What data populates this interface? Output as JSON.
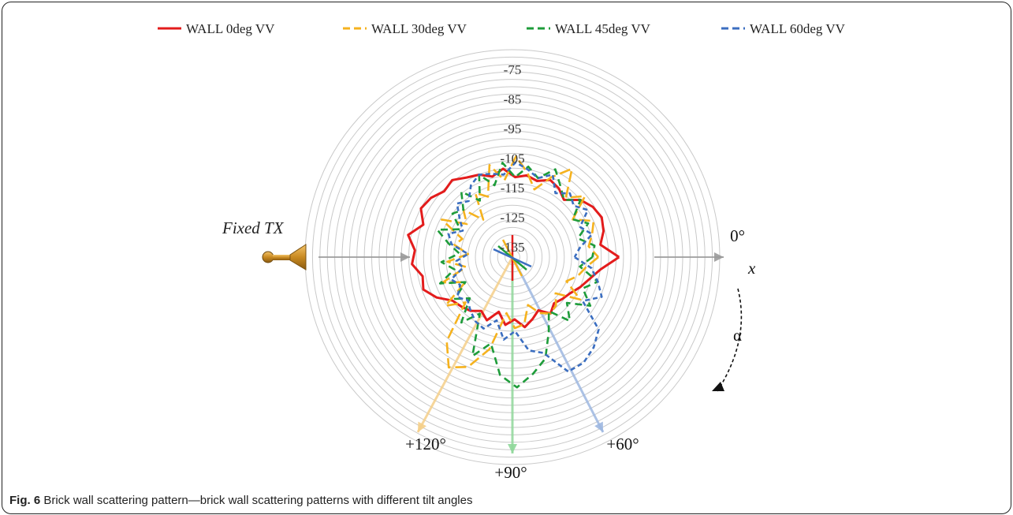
{
  "caption": {
    "label": "Fig. 6",
    "text": "Brick wall scattering pattern—brick wall scattering patterns with different tilt angles"
  },
  "annotations": {
    "transmitter": "Fixed TX",
    "x_axis": "x",
    "rotation": "α"
  },
  "colors": {
    "wall_0": "#e31c1c",
    "wall_30": "#f5b21e",
    "wall_45": "#1e9c3a",
    "wall_60": "#3b6ec0",
    "ring": "#c9c9c9",
    "arrow_grey": "#9a9a9a"
  },
  "chart_data": {
    "type": "polar",
    "radial_ticks": [
      "-75",
      "-85",
      "-95",
      "-105",
      "-115",
      "-125",
      "-135"
    ],
    "radial_range": [
      -140,
      -70
    ],
    "angle_labels": [
      {
        "angle": 0,
        "label": "0°"
      },
      {
        "angle": 60,
        "label": "+60°"
      },
      {
        "angle": 90,
        "label": "+90°"
      },
      {
        "angle": 120,
        "label": "+120°"
      }
    ],
    "angle_unit": "deg",
    "angle_direction": "clockwise from +x",
    "series": [
      {
        "name": "WALL 0deg VV",
        "key": "wall_0",
        "dash": "",
        "angles": [
          0,
          8,
          16,
          24,
          32,
          40,
          48,
          56,
          64,
          72,
          80,
          88,
          96,
          104,
          112,
          120,
          128,
          136,
          144,
          152,
          160,
          168,
          176,
          184,
          192,
          200,
          208,
          216,
          224,
          232,
          240,
          248,
          256,
          264,
          272,
          280,
          288,
          296,
          304,
          312,
          320,
          328,
          336,
          344,
          352
        ],
        "values": [
          -104,
          -110,
          -113,
          -115,
          -117,
          -118,
          -119,
          -117,
          -120,
          -118,
          -116,
          -119,
          -117,
          -121,
          -117,
          -119,
          -117,
          -116,
          -115,
          -111,
          -108,
          -109,
          -106,
          -107,
          -104,
          -108,
          -105,
          -106,
          -108,
          -107,
          -109,
          -110,
          -112,
          -110,
          -113,
          -112,
          -113,
          -111,
          -112,
          -114,
          -110,
          -108,
          -107,
          -108,
          -110
        ]
      },
      {
        "name": "WALL 30deg VV",
        "key": "wall_30",
        "dash": "14 6",
        "angles": [
          0,
          8,
          16,
          24,
          32,
          40,
          48,
          56,
          64,
          72,
          80,
          88,
          96,
          104,
          112,
          120,
          128,
          136,
          144,
          152,
          160,
          168,
          176,
          184,
          192,
          200,
          208,
          216,
          224,
          232,
          240,
          248,
          256,
          264,
          272,
          280,
          288,
          296,
          304,
          312,
          320,
          328,
          336,
          344,
          352
        ],
        "values": [
          -111,
          -115,
          -117,
          -120,
          -113,
          -121,
          -118,
          -117,
          -119,
          -123,
          -117,
          -116,
          -121,
          -108,
          -100,
          -97,
          -104,
          -118,
          -112,
          -122,
          -115,
          -124,
          -118,
          -125,
          -120,
          -122,
          -113,
          -121,
          -117,
          -124,
          -115,
          -118,
          -108,
          -114,
          -106,
          -111,
          -116,
          -110,
          -104,
          -113,
          -108,
          -116,
          -110,
          -112,
          -114
        ]
      },
      {
        "name": "WALL 45deg VV",
        "key": "wall_45",
        "dash": "9 6",
        "angles": [
          0,
          8,
          16,
          24,
          32,
          40,
          48,
          56,
          64,
          72,
          80,
          88,
          96,
          104,
          112,
          120,
          128,
          136,
          144,
          152,
          160,
          168,
          176,
          184,
          192,
          200,
          208,
          216,
          224,
          232,
          240,
          248,
          256,
          264,
          272,
          280,
          288,
          296,
          304,
          312,
          320,
          328,
          336,
          344,
          352
        ],
        "values": [
          -113,
          -117,
          -110,
          -114,
          -109,
          -116,
          -111,
          -118,
          -112,
          -104,
          -100,
          -96,
          -100,
          -110,
          -104,
          -118,
          -112,
          -120,
          -116,
          -122,
          -114,
          -120,
          -116,
          -122,
          -118,
          -113,
          -120,
          -115,
          -117,
          -112,
          -118,
          -110,
          -115,
          -108,
          -113,
          -109,
          -112,
          -107,
          -111,
          -114,
          -110,
          -116,
          -112,
          -117,
          -112
        ]
      },
      {
        "name": "WALL 60deg VV",
        "key": "wall_60",
        "dash": "6 4",
        "angles": [
          0,
          8,
          16,
          24,
          32,
          40,
          48,
          56,
          64,
          72,
          80,
          88,
          96,
          104,
          112,
          120,
          128,
          136,
          144,
          152,
          160,
          168,
          176,
          184,
          192,
          200,
          208,
          216,
          224,
          232,
          240,
          248,
          256,
          264,
          272,
          280,
          288,
          296,
          304,
          312,
          320,
          328,
          336,
          344,
          352
        ],
        "values": [
          -119,
          -113,
          -110,
          -107,
          -112,
          -102,
          -99,
          -97,
          -97,
          -106,
          -108,
          -115,
          -112,
          -118,
          -114,
          -115,
          -117,
          -119,
          -117,
          -120,
          -118,
          -123,
          -121,
          -125,
          -119,
          -117,
          -121,
          -118,
          -114,
          -116,
          -112,
          -110,
          -111,
          -112,
          -108,
          -110,
          -112,
          -109,
          -114,
          -111,
          -113,
          -110,
          -115,
          -112,
          -117
        ]
      }
    ]
  }
}
